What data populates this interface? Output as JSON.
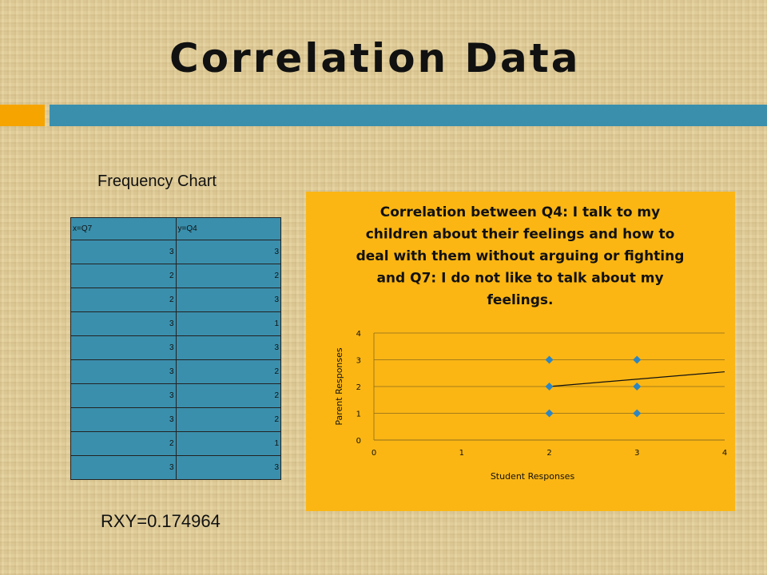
{
  "slide": {
    "title": "Correlation Data",
    "frequency_label": "Frequency Chart",
    "rxy": "RXY=0.174964"
  },
  "table": {
    "headers": [
      "x=Q7",
      "y=Q4"
    ],
    "rows": [
      [
        "3",
        "3"
      ],
      [
        "2",
        "2"
      ],
      [
        "2",
        "3"
      ],
      [
        "3",
        "1"
      ],
      [
        "3",
        "3"
      ],
      [
        "3",
        "2"
      ],
      [
        "3",
        "2"
      ],
      [
        "3",
        "2"
      ],
      [
        "2",
        "1"
      ],
      [
        "3",
        "3"
      ]
    ]
  },
  "colors": {
    "title_bar": "#3a8fac",
    "accent": "#f5a400",
    "chart_bg": "#fbb614",
    "marker": "#2e86c1"
  },
  "chart_data": {
    "type": "scatter",
    "title": "Correlation between Q4: I talk to my children about their feelings and how to deal with them without arguing or fighting and Q7: I do not like to talk about my feelings.",
    "xlabel": "Student Responses",
    "ylabel": "Parent Responses",
    "xlim": [
      0,
      4
    ],
    "ylim": [
      0,
      4
    ],
    "xticks": [
      "0",
      "1",
      "2",
      "3",
      "4"
    ],
    "yticks": [
      "0",
      "1",
      "2",
      "3",
      "4"
    ],
    "points": [
      [
        2,
        3
      ],
      [
        2,
        2
      ],
      [
        2,
        1
      ],
      [
        3,
        3
      ],
      [
        3,
        2
      ],
      [
        3,
        1
      ]
    ],
    "trendline": [
      [
        2,
        2.0
      ],
      [
        4,
        2.55
      ]
    ],
    "grid": true
  }
}
